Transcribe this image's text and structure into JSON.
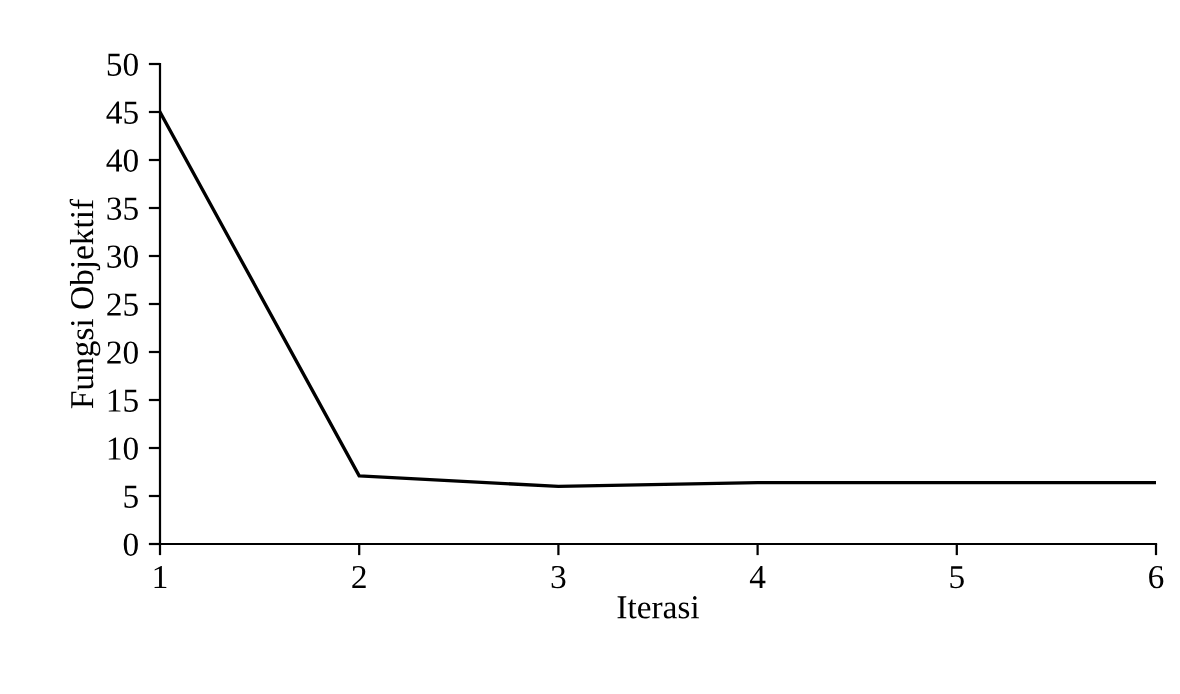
{
  "chart_data": {
    "type": "line",
    "xlabel": "Iterasi",
    "ylabel": "Fungsi Objektif",
    "x": [
      1,
      2,
      3,
      4,
      5,
      6
    ],
    "series": [
      {
        "color": "#000000",
        "values": [
          45,
          7.1,
          6,
          6.4,
          6.4,
          6.4
        ]
      }
    ],
    "xlim": [
      1,
      6
    ],
    "xticks": [
      1,
      2,
      3,
      4,
      5,
      6
    ],
    "ylim": [
      0,
      50
    ],
    "yticks": [
      0,
      5,
      10,
      15,
      20,
      25,
      30,
      35,
      40,
      45,
      50
    ],
    "grid": false,
    "legend": false,
    "marker": "none",
    "line_style": "solid"
  }
}
